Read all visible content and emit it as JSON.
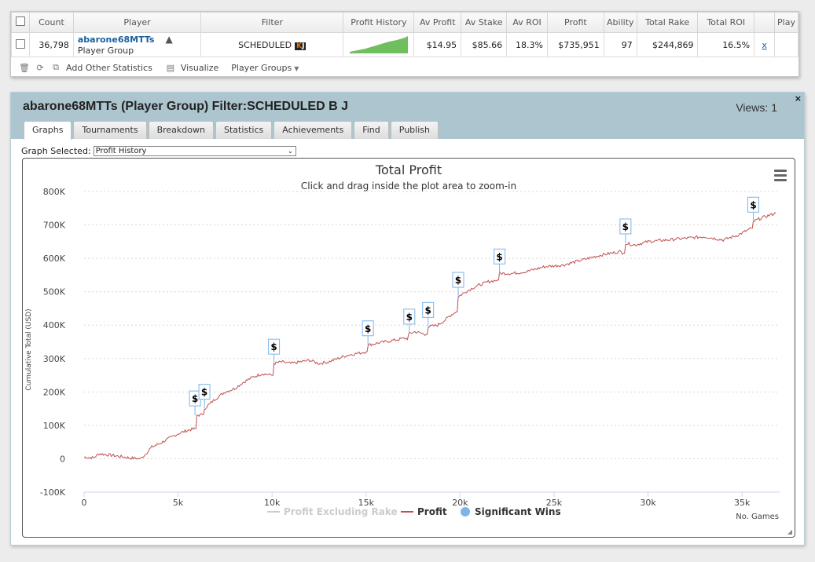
{
  "table": {
    "headers": [
      "Count",
      "Player",
      "Filter",
      "Profit History",
      "Av Profit",
      "Av Stake",
      "Av ROI",
      "Profit",
      "Ability",
      "Total Rake",
      "Total ROI",
      "",
      "Play"
    ],
    "row": {
      "count": "36,798",
      "player_name": "abarone68MTTs",
      "player_sub": "Player Group",
      "filter": "SCHEDULED",
      "filter_badge_a": "K",
      "filter_badge_b": "J",
      "av_profit": "$14.95",
      "av_stake": "$85.66",
      "av_roi": "18.3%",
      "profit": "$735,951",
      "ability": "97",
      "total_rake": "$244,869",
      "total_roi": "16.5%",
      "delete": "x"
    }
  },
  "toolbar": {
    "add_stats": "Add Other Statistics",
    "visualize": "Visualize",
    "player_groups": "Player Groups"
  },
  "panel": {
    "title": "abarone68MTTs (Player Group) Filter:SCHEDULED B J",
    "views": "Views: 1",
    "close": "×",
    "tabs": [
      "Graphs",
      "Tournaments",
      "Breakdown",
      "Statistics",
      "Achievements",
      "Find",
      "Publish"
    ],
    "graph_selected_label": "Graph Selected:",
    "graph_selected_value": "Profit History"
  },
  "colors": {
    "header_bg": "#acc5cf",
    "profit_line": "#c0504d",
    "sparkline": "#6fbf5f",
    "significant_wins": "#7cb5ec"
  },
  "chart_data": {
    "type": "line",
    "title": "Total Profit",
    "subtitle": "Click and drag inside the plot area to zoom-in",
    "xlabel": "No. Games",
    "ylabel": "Cumulative Total (USD)",
    "xlim": [
      0,
      37000
    ],
    "ylim": [
      -100000,
      800000
    ],
    "x_ticks": [
      "0",
      "5k",
      "10k",
      "15k",
      "20k",
      "25k",
      "30k",
      "35k"
    ],
    "y_ticks": [
      "-100K",
      "0",
      "100K",
      "200K",
      "300K",
      "400K",
      "500K",
      "600K",
      "700K",
      "800K"
    ],
    "grid": "horizontal dashed",
    "legend": [
      "Profit Excluding Rake",
      "Profit",
      "Significant Wins"
    ],
    "legend_position": "bottom-center",
    "series": [
      {
        "name": "Profit",
        "x": [
          0,
          500,
          800,
          1500,
          2500,
          3000,
          3200,
          3600,
          4000,
          4500,
          5000,
          5500,
          5900,
          6000,
          6300,
          6400,
          6700,
          7000,
          7500,
          8000,
          8500,
          9000,
          9500,
          10000,
          10100,
          10500,
          11000,
          11500,
          12000,
          12500,
          13000,
          13500,
          14000,
          14500,
          15000,
          15100,
          15500,
          16000,
          16500,
          17000,
          17200,
          17300,
          17600,
          18000,
          18200,
          18300,
          18800,
          19200,
          19500,
          19800,
          19900,
          20300,
          20800,
          21500,
          22000,
          22100,
          22800,
          23500,
          24500,
          25500,
          26500,
          27500,
          28000,
          28500,
          28700,
          28800,
          29300,
          30000,
          31000,
          32000,
          33000,
          34000,
          34800,
          35500,
          35600,
          36000,
          36500,
          36800
        ],
        "y": [
          5000,
          3000,
          15000,
          10000,
          2000,
          0,
          10000,
          35000,
          45000,
          60000,
          75000,
          85000,
          90000,
          130000,
          132000,
          150000,
          165000,
          180000,
          200000,
          210000,
          230000,
          245000,
          255000,
          250000,
          285000,
          290000,
          285000,
          290000,
          295000,
          285000,
          290000,
          300000,
          310000,
          315000,
          320000,
          340000,
          345000,
          350000,
          355000,
          360000,
          360000,
          375000,
          380000,
          375000,
          372000,
          395000,
          400000,
          415000,
          430000,
          440000,
          485000,
          500000,
          515000,
          530000,
          535000,
          555000,
          555000,
          560000,
          575000,
          580000,
          595000,
          610000,
          615000,
          620000,
          615000,
          645000,
          640000,
          650000,
          655000,
          660000,
          665000,
          655000,
          670000,
          690000,
          710000,
          720000,
          730000,
          735000
        ]
      },
      {
        "name": "Significant Wins",
        "x": [
          5900,
          6400,
          10100,
          15100,
          17300,
          18300,
          19900,
          22100,
          28800,
          35600
        ],
        "y": [
          130000,
          150000,
          285000,
          340000,
          375000,
          395000,
          485000,
          555000,
          645000,
          710000
        ],
        "marker": "$"
      }
    ]
  }
}
